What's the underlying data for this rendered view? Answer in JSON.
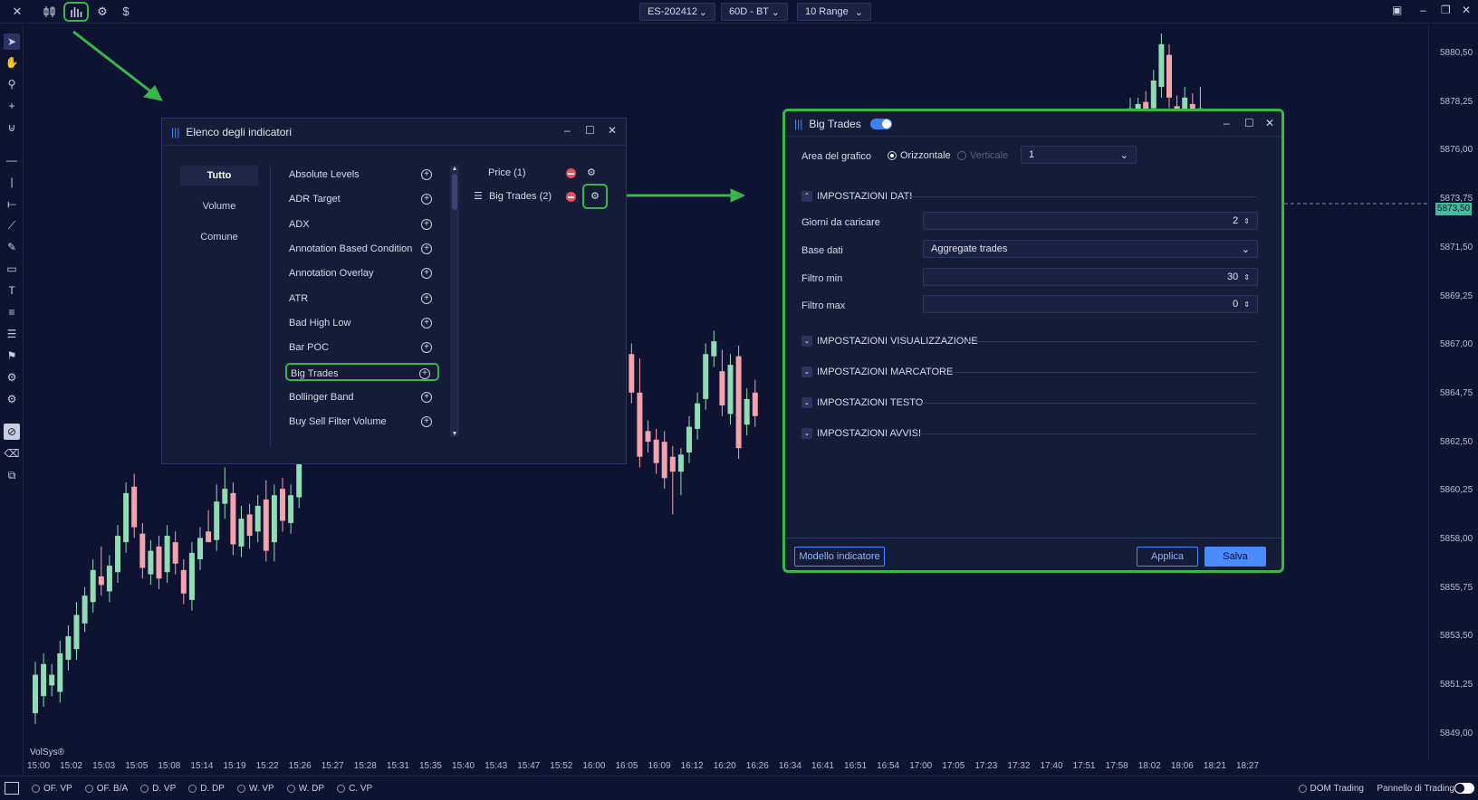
{
  "topbar": {
    "symbol": "ES-202412",
    "feed": "60D - BT",
    "range": "10 Range"
  },
  "price_axis": [
    "5880,50",
    "5878,25",
    "5876,00",
    "5873,75",
    "5871,50",
    "5869,25",
    "5867,00",
    "5864,75",
    "5862,50",
    "5860,25",
    "5858,00",
    "5855,75",
    "5853,50",
    "5851,25",
    "5849,00"
  ],
  "current_price": "5873,50",
  "time_axis": [
    "15:00",
    "15:02",
    "15:03",
    "15:05",
    "15:08",
    "15:14",
    "15:19",
    "15:22",
    "15:26",
    "15:27",
    "15:28",
    "15:31",
    "15:35",
    "15:40",
    "15:43",
    "15:47",
    "15:52",
    "16:00",
    "16:05",
    "16:09",
    "16:12",
    "16:20",
    "16:26",
    "16:34",
    "16:41",
    "16:51",
    "16:54",
    "17:00",
    "17:05",
    "17:23",
    "17:32",
    "17:40",
    "17:51",
    "17:58",
    "18:02",
    "18:06",
    "18:21",
    "18:27"
  ],
  "watermark": "VolSys®",
  "bottombar": {
    "items": [
      "OF. VP",
      "OF. B/A",
      "D. VP",
      "D. DP",
      "W. VP",
      "W. DP",
      "C. VP"
    ],
    "dom_trading": "DOM Trading",
    "pannello": "Pannello di Trading"
  },
  "indicator_list": {
    "title": "Elenco degli indicatori",
    "categories": [
      "Tutto",
      "Volume",
      "Comune"
    ],
    "items": [
      "Absolute Levels",
      "ADR Target",
      "ADX",
      "Annotation Based Condition",
      "Annotation Overlay",
      "ATR",
      "Bad High Low",
      "Bar POC",
      "Big Trades",
      "Bollinger Band",
      "Buy Sell Filter Volume"
    ],
    "active": [
      {
        "label": "Price (1)"
      },
      {
        "label": "Big Trades (2)"
      }
    ]
  },
  "settings": {
    "title": "Big Trades",
    "area_label": "Area del grafico",
    "orient_h": "Orizzontale",
    "orient_v": "Verticale",
    "area_value": "1",
    "sec_dati": "IMPOSTAZIONI DATI",
    "giorni_label": "Giorni da caricare",
    "giorni_value": "2",
    "base_label": "Base dati",
    "base_value": "Aggregate trades",
    "fmin_label": "Filtro min",
    "fmin_value": "30",
    "fmax_label": "Filtro max",
    "fmax_value": "0",
    "sec_vis": "IMPOSTAZIONI VISUALIZZAZIONE",
    "sec_marc": "IMPOSTAZIONI MARCATORE",
    "sec_testo": "IMPOSTAZIONI TESTO",
    "sec_avvisi": "IMPOSTAZIONI AVVISI",
    "btn_modello": "Modello indicatore",
    "btn_applica": "Applica",
    "btn_salva": "Salva"
  },
  "colors": {
    "bg": "#0d1330",
    "bull": "#8fdcb5",
    "bear": "#f4a3ad",
    "highlight": "#3ab54a",
    "accent": "#3b82f6"
  },
  "candles": [
    {
      "o": 5849.8,
      "h": 5852.2,
      "l": 5849.3,
      "c": 5851.6
    },
    {
      "o": 5850.6,
      "h": 5852.6,
      "l": 5850.1,
      "c": 5852.1
    },
    {
      "o": 5851.1,
      "h": 5852.1,
      "l": 5850.6,
      "c": 5851.6
    },
    {
      "o": 5850.8,
      "h": 5853.2,
      "l": 5850.3,
      "c": 5852.6
    },
    {
      "o": 5852.3,
      "h": 5853.9,
      "l": 5851.8,
      "c": 5853.4
    },
    {
      "o": 5852.8,
      "h": 5855.0,
      "l": 5852.3,
      "c": 5854.4
    },
    {
      "o": 5854.0,
      "h": 5855.7,
      "l": 5853.6,
      "c": 5855.3
    },
    {
      "o": 5855.0,
      "h": 5857.0,
      "l": 5854.5,
      "c": 5856.5
    },
    {
      "o": 5856.2,
      "h": 5857.6,
      "l": 5855.3,
      "c": 5855.8
    },
    {
      "o": 5855.5,
      "h": 5857.2,
      "l": 5855.0,
      "c": 5856.7
    },
    {
      "o": 5856.4,
      "h": 5858.6,
      "l": 5855.9,
      "c": 5858.1
    },
    {
      "o": 5857.8,
      "h": 5860.6,
      "l": 5857.3,
      "c": 5860.1
    },
    {
      "o": 5860.4,
      "h": 5861.0,
      "l": 5858.0,
      "c": 5858.5
    },
    {
      "o": 5858.2,
      "h": 5858.7,
      "l": 5856.1,
      "c": 5856.6
    },
    {
      "o": 5856.3,
      "h": 5857.9,
      "l": 5855.8,
      "c": 5857.4
    },
    {
      "o": 5857.6,
      "h": 5858.1,
      "l": 5855.6,
      "c": 5856.1
    },
    {
      "o": 5856.4,
      "h": 5858.6,
      "l": 5855.9,
      "c": 5858.1
    },
    {
      "o": 5857.8,
      "h": 5858.3,
      "l": 5856.3,
      "c": 5856.8
    },
    {
      "o": 5856.5,
      "h": 5857.0,
      "l": 5854.9,
      "c": 5855.4
    },
    {
      "o": 5855.1,
      "h": 5857.8,
      "l": 5854.6,
      "c": 5857.3
    },
    {
      "o": 5857.0,
      "h": 5858.5,
      "l": 5856.5,
      "c": 5858.0
    },
    {
      "o": 5858.3,
      "h": 5859.3,
      "l": 5857.8,
      "c": 5857.8
    },
    {
      "o": 5857.9,
      "h": 5860.5,
      "l": 5857.4,
      "c": 5859.7
    },
    {
      "o": 5859.6,
      "h": 5861.3,
      "l": 5858.9,
      "c": 5860.3
    },
    {
      "o": 5860.1,
      "h": 5860.6,
      "l": 5857.2,
      "c": 5857.7
    },
    {
      "o": 5857.6,
      "h": 5859.5,
      "l": 5857.1,
      "c": 5858.9
    },
    {
      "o": 5859.1,
      "h": 5859.6,
      "l": 5857.5,
      "c": 5858.1
    },
    {
      "o": 5858.3,
      "h": 5860.0,
      "l": 5857.8,
      "c": 5859.5
    },
    {
      "o": 5859.8,
      "h": 5860.7,
      "l": 5856.9,
      "c": 5857.4
    },
    {
      "o": 5857.8,
      "h": 5860.5,
      "l": 5856.9,
      "c": 5860.0
    },
    {
      "o": 5860.3,
      "h": 5860.8,
      "l": 5858.3,
      "c": 5858.8
    },
    {
      "o": 5858.7,
      "h": 5860.5,
      "l": 5858.2,
      "c": 5860.0
    },
    {
      "o": 5859.9,
      "h": 5863.6,
      "l": 5859.4,
      "c": 5862.9
    }
  ],
  "candles_right": [
    {
      "o": 5867.6,
      "h": 5869.9,
      "l": 5867.1,
      "c": 5869.4
    },
    {
      "o": 5869.4,
      "h": 5869.9,
      "l": 5866.8,
      "c": 5867.3
    },
    {
      "o": 5867.2,
      "h": 5867.7,
      "l": 5866.1,
      "c": 5866.6
    },
    {
      "o": 5866.6,
      "h": 5867.1,
      "l": 5864.3,
      "c": 5864.8
    },
    {
      "o": 5864.8,
      "h": 5866.4,
      "l": 5861.3,
      "c": 5861.8
    },
    {
      "o": 5863.0,
      "h": 5863.5,
      "l": 5862.0,
      "c": 5862.5
    },
    {
      "o": 5862.6,
      "h": 5863.1,
      "l": 5861.0,
      "c": 5861.5
    },
    {
      "o": 5862.5,
      "h": 5863.0,
      "l": 5860.3,
      "c": 5860.8
    },
    {
      "o": 5861.8,
      "h": 5862.3,
      "l": 5859.1,
      "c": 5861.1
    },
    {
      "o": 5861.1,
      "h": 5862.2,
      "l": 5860.0,
      "c": 5861.9
    },
    {
      "o": 5862.0,
      "h": 5863.7,
      "l": 5861.5,
      "c": 5863.2
    },
    {
      "o": 5863.1,
      "h": 5864.8,
      "l": 5862.6,
      "c": 5864.3
    },
    {
      "o": 5864.5,
      "h": 5867.1,
      "l": 5864.0,
      "c": 5866.6
    },
    {
      "o": 5866.5,
      "h": 5867.7,
      "l": 5866.0,
      "c": 5867.2
    },
    {
      "o": 5865.8,
      "h": 5866.8,
      "l": 5863.7,
      "c": 5864.2
    },
    {
      "o": 5863.8,
      "h": 5866.6,
      "l": 5863.3,
      "c": 5866.1
    },
    {
      "o": 5866.5,
      "h": 5867.0,
      "l": 5861.7,
      "c": 5862.2
    },
    {
      "o": 5863.3,
      "h": 5865.0,
      "l": 5862.8,
      "c": 5864.5
    },
    {
      "o": 5864.8,
      "h": 5865.4,
      "l": 5863.2,
      "c": 5863.7
    }
  ],
  "candles_top": [
    {
      "o": 5877.6,
      "h": 5878.6,
      "l": 5877.1,
      "c": 5878.1
    },
    {
      "o": 5877.6,
      "h": 5878.6,
      "l": 5877.1,
      "c": 5878.3
    },
    {
      "o": 5878.4,
      "h": 5878.9,
      "l": 5877.1,
      "c": 5877.6
    },
    {
      "o": 5878.1,
      "h": 5879.9,
      "l": 5877.6,
      "c": 5879.4
    },
    {
      "o": 5879.1,
      "h": 5881.6,
      "l": 5878.6,
      "c": 5881.1
    },
    {
      "o": 5880.6,
      "h": 5881.1,
      "l": 5878.1,
      "c": 5878.6
    },
    {
      "o": 5878.2,
      "h": 5878.7,
      "l": 5877.1,
      "c": 5877.6
    },
    {
      "o": 5877.6,
      "h": 5879.1,
      "l": 5877.1,
      "c": 5878.6
    },
    {
      "o": 5878.3,
      "h": 5878.8,
      "l": 5877.1,
      "c": 5877.6
    },
    {
      "o": 5877.6,
      "h": 5879.1,
      "l": 5877.1,
      "c": 5878.1
    }
  ],
  "candles_far": [
    {
      "o": 5875.6,
      "h": 5876.1,
      "l": 5873.1,
      "c": 5873.6
    },
    {
      "o": 5873.8,
      "h": 5874.3,
      "l": 5871.4,
      "c": 5871.9
    },
    {
      "o": 5872.1,
      "h": 5874.6,
      "l": 5871.1,
      "c": 5874.1
    },
    {
      "o": 5873.4,
      "h": 5876.0,
      "l": 5872.9,
      "c": 5874.4
    },
    {
      "o": 5874.0,
      "h": 5874.5,
      "l": 5873.0,
      "c": 5873.5
    }
  ]
}
